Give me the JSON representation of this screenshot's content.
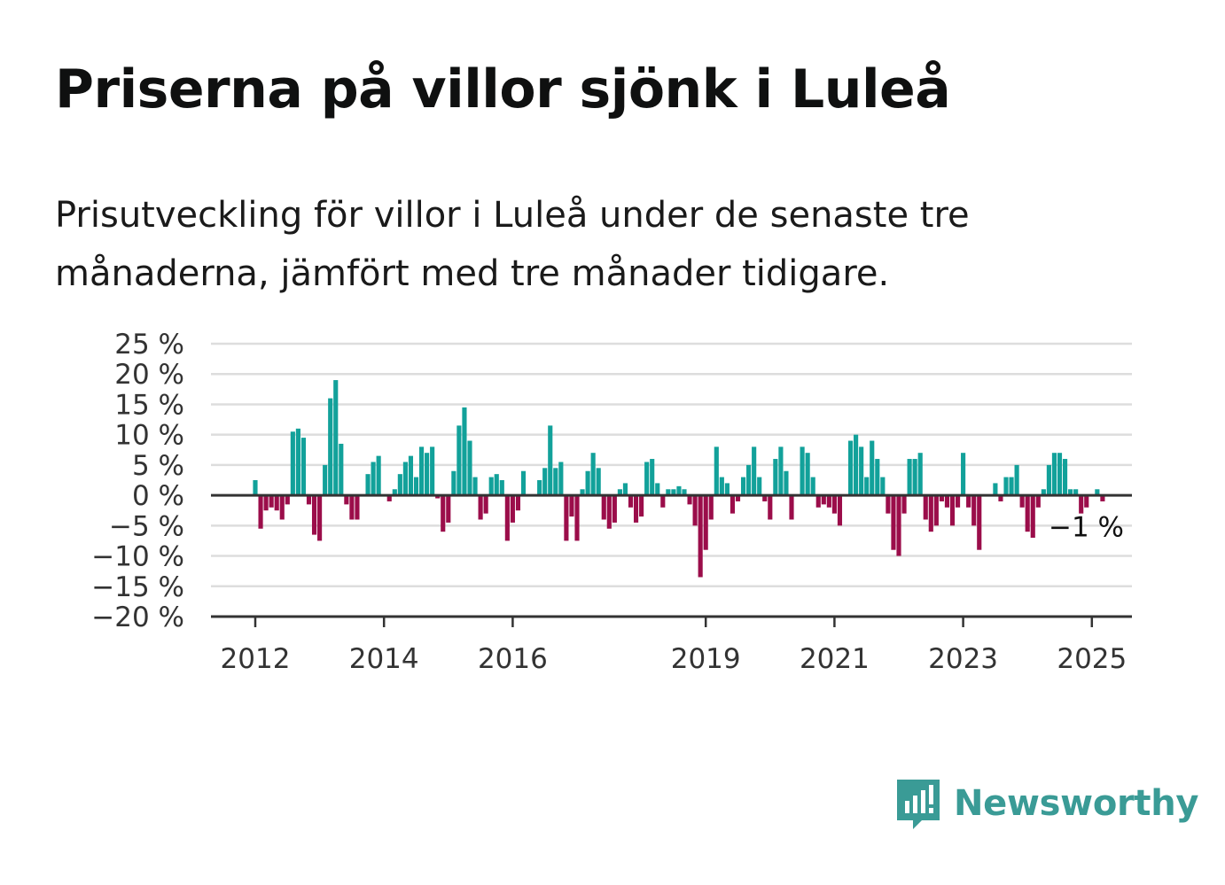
{
  "title": "Priserna på villor sjönk i Luleå",
  "subtitle": "Prisutveckling för villor i Luleå under de senaste tre månaderna, jämfört med tre månader tidigare.",
  "brand": "Newsworthy",
  "colors": {
    "positive": "#12a19a",
    "negative": "#9b0d4a",
    "grid": "#dddddd",
    "axis": "#333333",
    "brand": "#3a9b96"
  },
  "chart_data": {
    "type": "bar",
    "ylim": [
      -20,
      25
    ],
    "yticks": [
      25,
      20,
      15,
      10,
      5,
      0,
      -5,
      -10,
      -15,
      -20
    ],
    "ytick_labels": [
      "25 %",
      "20 %",
      "15 %",
      "10 %",
      "5 %",
      "0 %",
      "−5 %",
      "−10 %",
      "−15 %",
      "−20 %"
    ],
    "xticks": [
      "2012",
      "2014",
      "2016",
      "2019",
      "2021",
      "2023",
      "2025"
    ],
    "start": "2012-01",
    "grid": true,
    "annotation": "−1 %",
    "values": [
      2.5,
      -5.5,
      -2.5,
      -2,
      -2.5,
      -4,
      -1.5,
      10.5,
      11,
      9.5,
      -1.5,
      -6.5,
      -7.5,
      5,
      16,
      19,
      8.5,
      -1.5,
      -4,
      -4,
      0,
      3.5,
      5.5,
      6.5,
      0,
      -1,
      1,
      3.5,
      5.5,
      6.5,
      3,
      8,
      7,
      8,
      -0.5,
      -6,
      -4.5,
      4,
      11.5,
      14.5,
      9,
      3,
      -4,
      -3,
      3,
      3.5,
      2.5,
      -7.5,
      -4.5,
      -2.5,
      4,
      0,
      0,
      2.5,
      4.5,
      11.5,
      4.5,
      5.5,
      -7.5,
      -3.5,
      -7.5,
      1,
      4,
      7,
      4.5,
      -4,
      -5.5,
      -4.5,
      1,
      2,
      -2,
      -4.5,
      -3.5,
      5.5,
      6,
      2,
      -2,
      1,
      1,
      1.5,
      1,
      -1.5,
      -5,
      -13.5,
      -9,
      -4,
      8,
      3,
      2,
      -3,
      -1,
      3,
      5,
      8,
      3,
      -1,
      -4,
      6,
      8,
      4,
      -4,
      0,
      8,
      7,
      3,
      -2,
      -1.5,
      -2,
      -3,
      -5,
      0,
      9,
      10,
      8,
      3,
      9,
      6,
      3,
      -3,
      -9,
      -10,
      -3,
      6,
      6,
      7,
      -4,
      -6,
      -5,
      -1,
      -2,
      -5,
      -2,
      7,
      -2,
      -5,
      -9,
      0,
      0,
      2,
      -1,
      3,
      3,
      5,
      -2,
      -6,
      -7,
      -2,
      1,
      5,
      7,
      7,
      6,
      1,
      1,
      -3,
      -2,
      0,
      1,
      -1
    ]
  }
}
